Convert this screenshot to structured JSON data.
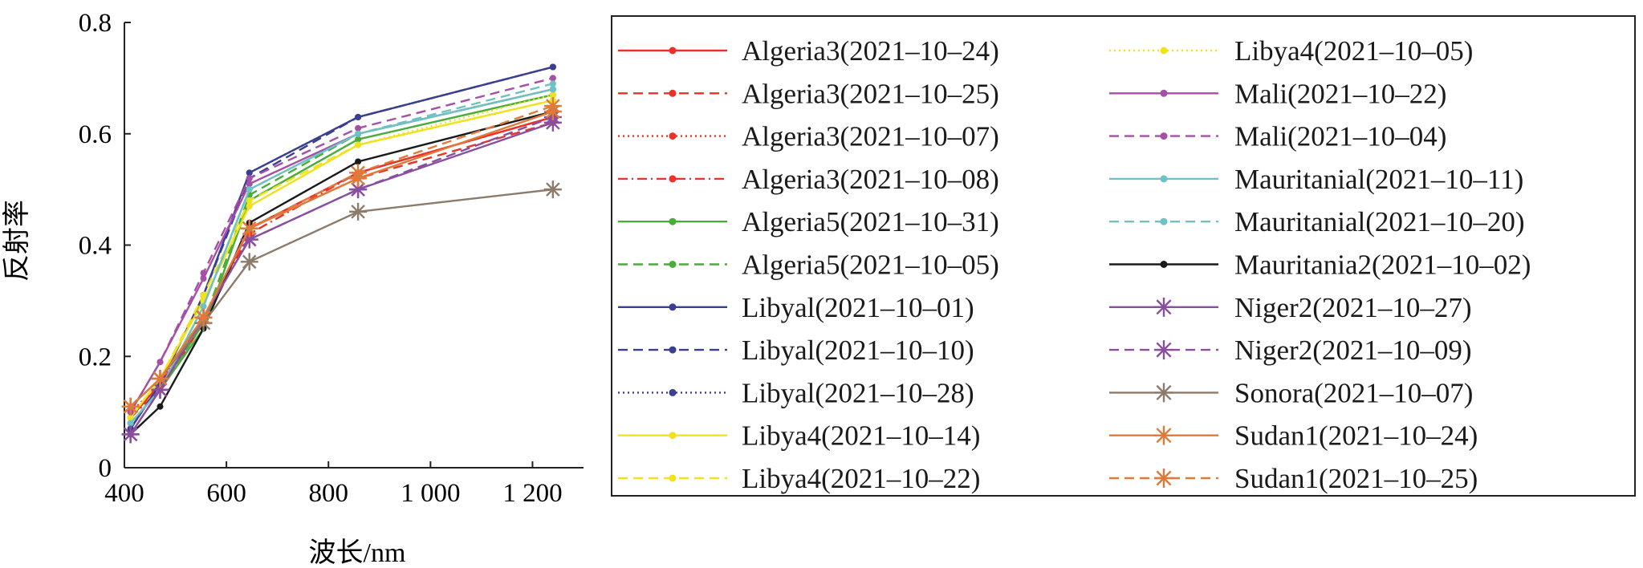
{
  "chart_data": {
    "type": "line",
    "title": "",
    "xlabel": "波长/nm",
    "ylabel": "反射率",
    "xlim": [
      400,
      1300
    ],
    "ylim": [
      0,
      0.8
    ],
    "x_ticks": [
      400,
      600,
      800,
      1000,
      1200
    ],
    "x_tick_labels": [
      "400",
      "600",
      "800",
      "1 000",
      "1 200"
    ],
    "y_ticks": [
      0,
      0.2,
      0.4,
      0.6,
      0.8
    ],
    "y_tick_labels": [
      "0",
      "0.2",
      "0.4",
      "0.6",
      "0.8"
    ],
    "grid": false,
    "legend_position": "right, two columns, boxed",
    "x": [
      412,
      470,
      555,
      645,
      858,
      1240
    ],
    "series": [
      {
        "name": "Algeria3(2021–10–24)",
        "color": "#e8332a",
        "dash": "solid",
        "marker": "dot",
        "values": [
          0.09,
          0.15,
          0.26,
          0.43,
          0.53,
          0.63
        ]
      },
      {
        "name": "Algeria3(2021–10–25)",
        "color": "#e8332a",
        "dash": "dashed",
        "marker": "dot",
        "values": [
          0.09,
          0.15,
          0.26,
          0.43,
          0.52,
          0.62
        ]
      },
      {
        "name": "Algeria3(2021–10–07)",
        "color": "#e8332a",
        "dash": "dotted",
        "marker": "dot",
        "values": [
          0.1,
          0.15,
          0.27,
          0.43,
          0.53,
          0.63
        ]
      },
      {
        "name": "Algeria3(2021–10–08)",
        "color": "#e8332a",
        "dash": "dashdot",
        "marker": "dot",
        "values": [
          0.09,
          0.14,
          0.26,
          0.42,
          0.53,
          0.63
        ]
      },
      {
        "name": "Algeria5(2021–10–31)",
        "color": "#4aac3a",
        "dash": "solid",
        "marker": "dot",
        "values": [
          0.08,
          0.14,
          0.25,
          0.48,
          0.59,
          0.67
        ]
      },
      {
        "name": "Algeria5(2021–10–05)",
        "color": "#4aac3a",
        "dash": "dashed",
        "marker": "dot",
        "values": [
          0.08,
          0.14,
          0.26,
          0.49,
          0.6,
          0.68
        ]
      },
      {
        "name": "Libyal(2021–10–01)",
        "color": "#3a3f8f",
        "dash": "solid",
        "marker": "dot",
        "values": [
          0.07,
          0.15,
          0.31,
          0.53,
          0.63,
          0.72
        ]
      },
      {
        "name": "Libyal(2021–10–10)",
        "color": "#3a3f8f",
        "dash": "dashed",
        "marker": "dot",
        "values": [
          0.07,
          0.15,
          0.31,
          0.52,
          0.63,
          0.72
        ]
      },
      {
        "name": "Libyal(2021–10–28)",
        "color": "#3a3f8f",
        "dash": "dotted",
        "marker": "dot",
        "values": [
          0.07,
          0.15,
          0.31,
          0.53,
          0.63,
          0.72
        ]
      },
      {
        "name": "Libya4(2021–10–14)",
        "color": "#f0e21e",
        "dash": "solid",
        "marker": "dot",
        "values": [
          0.09,
          0.16,
          0.3,
          0.47,
          0.58,
          0.66
        ]
      },
      {
        "name": "Libya4(2021–10–22)",
        "color": "#f0e21e",
        "dash": "dashed",
        "marker": "dot",
        "values": [
          0.09,
          0.16,
          0.31,
          0.48,
          0.58,
          0.66
        ]
      },
      {
        "name": "Libya4(2021–10–05)",
        "color": "#f0e21e",
        "dash": "dotted",
        "marker": "dot",
        "values": [
          0.09,
          0.16,
          0.3,
          0.47,
          0.58,
          0.67
        ]
      },
      {
        "name": "Mali(2021–10–22)",
        "color": "#a54fa6",
        "dash": "solid",
        "marker": "dot",
        "values": [
          0.1,
          0.19,
          0.34,
          0.51,
          0.6,
          0.68
        ]
      },
      {
        "name": "Mali(2021–10–04)",
        "color": "#a54fa6",
        "dash": "dashed",
        "marker": "dot",
        "values": [
          0.1,
          0.19,
          0.35,
          0.52,
          0.61,
          0.7
        ]
      },
      {
        "name": "Mauritanial(2021–10–11)",
        "color": "#6ec2c4",
        "dash": "solid",
        "marker": "dot",
        "values": [
          0.08,
          0.14,
          0.29,
          0.5,
          0.6,
          0.68
        ]
      },
      {
        "name": "Mauritanial(2021–10–20)",
        "color": "#6ec2c4",
        "dash": "dashed",
        "marker": "dot",
        "values": [
          0.08,
          0.14,
          0.29,
          0.5,
          0.6,
          0.69
        ]
      },
      {
        "name": "Mauritania2(2021–10–02)",
        "color": "#1a1a1a",
        "dash": "solid",
        "marker": "dot",
        "values": [
          0.06,
          0.11,
          0.25,
          0.44,
          0.55,
          0.64
        ]
      },
      {
        "name": "Niger2(2021–10–27)",
        "color": "#8a4ea0",
        "dash": "solid",
        "marker": "star",
        "values": [
          0.06,
          0.14,
          0.27,
          0.41,
          0.5,
          0.62
        ]
      },
      {
        "name": "Niger2(2021–10–09)",
        "color": "#8a4ea0",
        "dash": "dashed",
        "marker": "star",
        "values": [
          0.06,
          0.14,
          0.27,
          0.41,
          0.5,
          0.63
        ]
      },
      {
        "name": "Sonora(2021–10–07)",
        "color": "#8c7b6b",
        "dash": "solid",
        "marker": "star",
        "values": [
          0.11,
          0.16,
          0.26,
          0.37,
          0.46,
          0.5
        ]
      },
      {
        "name": "Sudan1(2021–10–24)",
        "color": "#e07a3a",
        "dash": "solid",
        "marker": "star",
        "values": [
          0.11,
          0.16,
          0.27,
          0.43,
          0.52,
          0.64
        ]
      },
      {
        "name": "Sudan1(2021–10–25)",
        "color": "#e07a3a",
        "dash": "dashed",
        "marker": "star",
        "values": [
          0.11,
          0.16,
          0.27,
          0.43,
          0.53,
          0.65
        ]
      }
    ]
  }
}
